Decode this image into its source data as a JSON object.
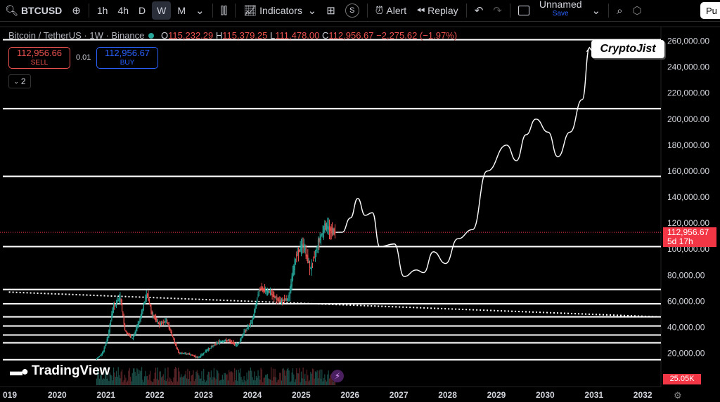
{
  "toolbar": {
    "symbol": "BTCUSD",
    "intervals": [
      "1h",
      "4h",
      "D",
      "W",
      "M"
    ],
    "selected_interval": "W",
    "indicators_label": "Indicators",
    "alert_label": "Alert",
    "replay_label": "Replay",
    "layout_name": "Unnamed",
    "save_label": "Save",
    "publish_label": "Pu",
    "icons": [
      "search-icon",
      "plus-icon",
      "candles-icon",
      "indicators-icon",
      "templates-icon",
      "strategy-icon",
      "alert-icon",
      "replay-icon",
      "undo-icon",
      "redo-icon",
      "layout-icon",
      "quick-search-icon",
      "settings-icon"
    ]
  },
  "legend": {
    "title": "Bitcoin / TetherUS · 1W · Binance",
    "open_label": "O",
    "open": "115,232.29",
    "high_label": "H",
    "high": "115,379.25",
    "low_label": "L",
    "low": "111,478.00",
    "close_label": "C",
    "close": "112,956.67",
    "change": "−2,275.62 (−1.97%)"
  },
  "trade": {
    "sell_price": "112,956.66",
    "sell_label": "SELL",
    "spread": "0.01",
    "buy_price": "112,956.67",
    "buy_label": "BUY"
  },
  "indicators_collapsed_count": "2",
  "branding": {
    "logo_text": "TradingView",
    "watermark": "CryptoJist"
  },
  "price_tag": {
    "price": "112,956.67",
    "countdown": "5d 17h"
  },
  "volume_tag": "25.05K",
  "colors": {
    "up": "#26a69a",
    "down": "#ef5350",
    "line": "#ffffff",
    "price_tag": "#f23645"
  },
  "chart_data": {
    "type": "candlestick",
    "x_unit": "year",
    "y_ticks": [
      20000,
      40000,
      60000,
      80000,
      100000,
      120000,
      140000,
      160000,
      180000,
      200000,
      220000,
      240000,
      260000
    ],
    "y_tick_labels": [
      "20,000.00",
      "40,000.00",
      "60,000.00",
      "80,000.00",
      "100,000.00",
      "120,000.00",
      "140,000.00",
      "160,000.00",
      "180,000.00",
      "200,000.00",
      "220,000.00",
      "240,000.00",
      "260,000.00"
    ],
    "x_ticks": [
      "019",
      "2020",
      "2021",
      "2022",
      "2023",
      "2024",
      "2025",
      "2026",
      "2027",
      "2028",
      "2029",
      "2030",
      "2031",
      "2032"
    ],
    "ylim": [
      8000,
      266000
    ],
    "price_series": [
      [
        2020.8,
        15000
      ],
      [
        2020.95,
        21000
      ],
      [
        2021.05,
        33000
      ],
      [
        2021.15,
        55000
      ],
      [
        2021.3,
        63000
      ],
      [
        2021.4,
        37000
      ],
      [
        2021.55,
        31000
      ],
      [
        2021.7,
        46000
      ],
      [
        2021.85,
        66000
      ],
      [
        2021.95,
        50000
      ],
      [
        2022.1,
        42000
      ],
      [
        2022.25,
        45000
      ],
      [
        2022.4,
        30000
      ],
      [
        2022.5,
        20000
      ],
      [
        2022.7,
        19500
      ],
      [
        2022.9,
        16500
      ],
      [
        2023.1,
        23000
      ],
      [
        2023.3,
        28500
      ],
      [
        2023.5,
        30000
      ],
      [
        2023.7,
        26000
      ],
      [
        2023.85,
        37000
      ],
      [
        2024.0,
        44000
      ],
      [
        2024.15,
        70000
      ],
      [
        2024.35,
        67000
      ],
      [
        2024.55,
        60000
      ],
      [
        2024.75,
        62000
      ],
      [
        2024.9,
        95000
      ],
      [
        2025.05,
        104000
      ],
      [
        2025.2,
        84000
      ],
      [
        2025.35,
        105000
      ],
      [
        2025.5,
        118000
      ],
      [
        2025.6,
        115000
      ],
      [
        2025.7,
        112957
      ]
    ],
    "projection_path": [
      [
        2025.7,
        112957
      ],
      [
        2025.83,
        113000
      ],
      [
        2026.0,
        124000
      ],
      [
        2026.15,
        139000
      ],
      [
        2026.3,
        126000
      ],
      [
        2026.45,
        128000
      ],
      [
        2026.6,
        102000
      ],
      [
        2026.9,
        104000
      ],
      [
        2027.1,
        79000
      ],
      [
        2027.35,
        84000
      ],
      [
        2027.5,
        82000
      ],
      [
        2027.7,
        98000
      ],
      [
        2027.95,
        89000
      ],
      [
        2028.2,
        108000
      ],
      [
        2028.5,
        115000
      ],
      [
        2028.8,
        160000
      ],
      [
        2029.2,
        180000
      ],
      [
        2029.4,
        168000
      ],
      [
        2029.6,
        188000
      ],
      [
        2029.8,
        200000
      ],
      [
        2030.05,
        190000
      ],
      [
        2030.25,
        171000
      ],
      [
        2030.5,
        190000
      ],
      [
        2030.75,
        215000
      ],
      [
        2030.9,
        255000
      ]
    ],
    "horizontal_levels": [
      261000,
      208000,
      156000,
      102000,
      69000,
      58000,
      48000,
      41000,
      34000,
      28000,
      15000
    ],
    "trendline": {
      "from": [
        2019.0,
        67000
      ],
      "to": [
        2032.3,
        48000
      ]
    },
    "current_price": 112956.67
  }
}
